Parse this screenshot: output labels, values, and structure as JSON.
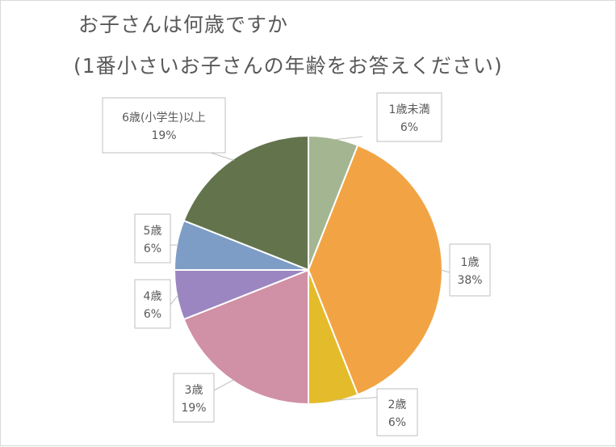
{
  "chart_data": {
    "type": "pie",
    "title": [
      "お子さんは何歳ですか",
      "(1番小さいお子さんの年齢をお答えください)"
    ],
    "start_angle": "12 o'clock, clockwise",
    "slices": [
      {
        "label": "1歳未満",
        "value": 6,
        "value_label": "6%",
        "color": "#a4b591"
      },
      {
        "label": "1歳",
        "value": 38,
        "value_label": "38%",
        "color": "#f2a444"
      },
      {
        "label": "2歳",
        "value": 6,
        "value_label": "6%",
        "color": "#e4bb2a"
      },
      {
        "label": "3歳",
        "value": 19,
        "value_label": "19%",
        "color": "#d090a6"
      },
      {
        "label": "4歳",
        "value": 6,
        "value_label": "6%",
        "color": "#9b86c1"
      },
      {
        "label": "5歳",
        "value": 6,
        "value_label": "6%",
        "color": "#7e9dc6"
      },
      {
        "label": "6歳(小学生)以上",
        "value": 19,
        "value_label": "19%",
        "color": "#63744d"
      }
    ],
    "legend": "none",
    "data_labels": "callouts with category name and percentage"
  },
  "colors": {
    "label_text": "#595959",
    "callout_border": "#bfbfbf",
    "slice_separator": "#ffffff"
  }
}
